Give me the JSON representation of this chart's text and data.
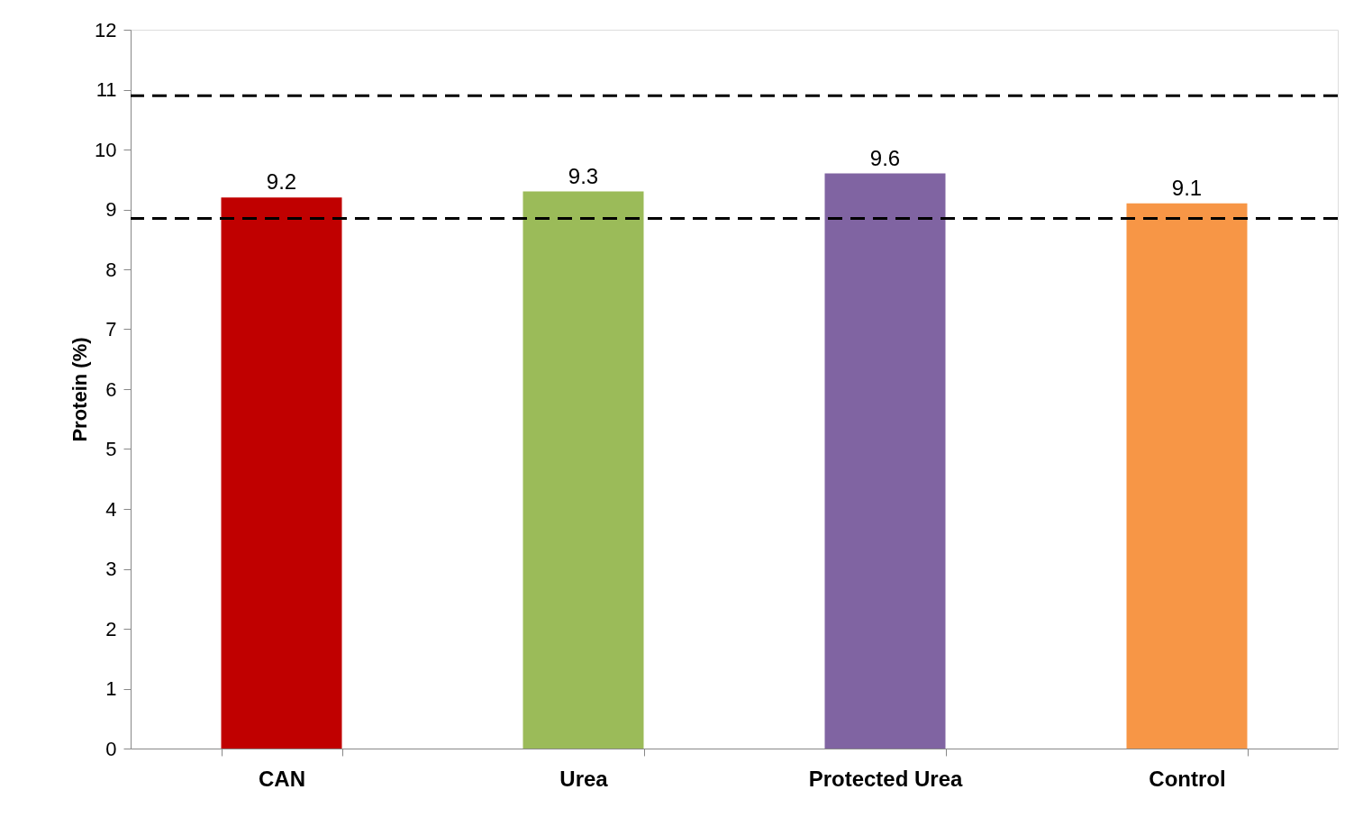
{
  "chart_data": {
    "type": "bar",
    "ylabel": "Protein (%)",
    "categories": [
      "CAN",
      "Urea",
      "Protected Urea",
      "Control"
    ],
    "values": [
      9.2,
      9.3,
      9.6,
      9.1
    ],
    "colors": [
      "#c00000",
      "#9bbb59",
      "#8064a2",
      "#f79646"
    ],
    "ylim": [
      0,
      12
    ],
    "yticks": [
      0,
      1,
      2,
      3,
      4,
      5,
      6,
      7,
      8,
      9,
      10,
      11,
      12
    ],
    "data_labels": true,
    "grid": false,
    "ref_lines": [
      {
        "axis": "y",
        "value": 10.9,
        "color": "#000000",
        "line_style": "dashed"
      },
      {
        "axis": "y",
        "value": 8.85,
        "color": "#000000",
        "line_style": "dashed"
      }
    ]
  }
}
